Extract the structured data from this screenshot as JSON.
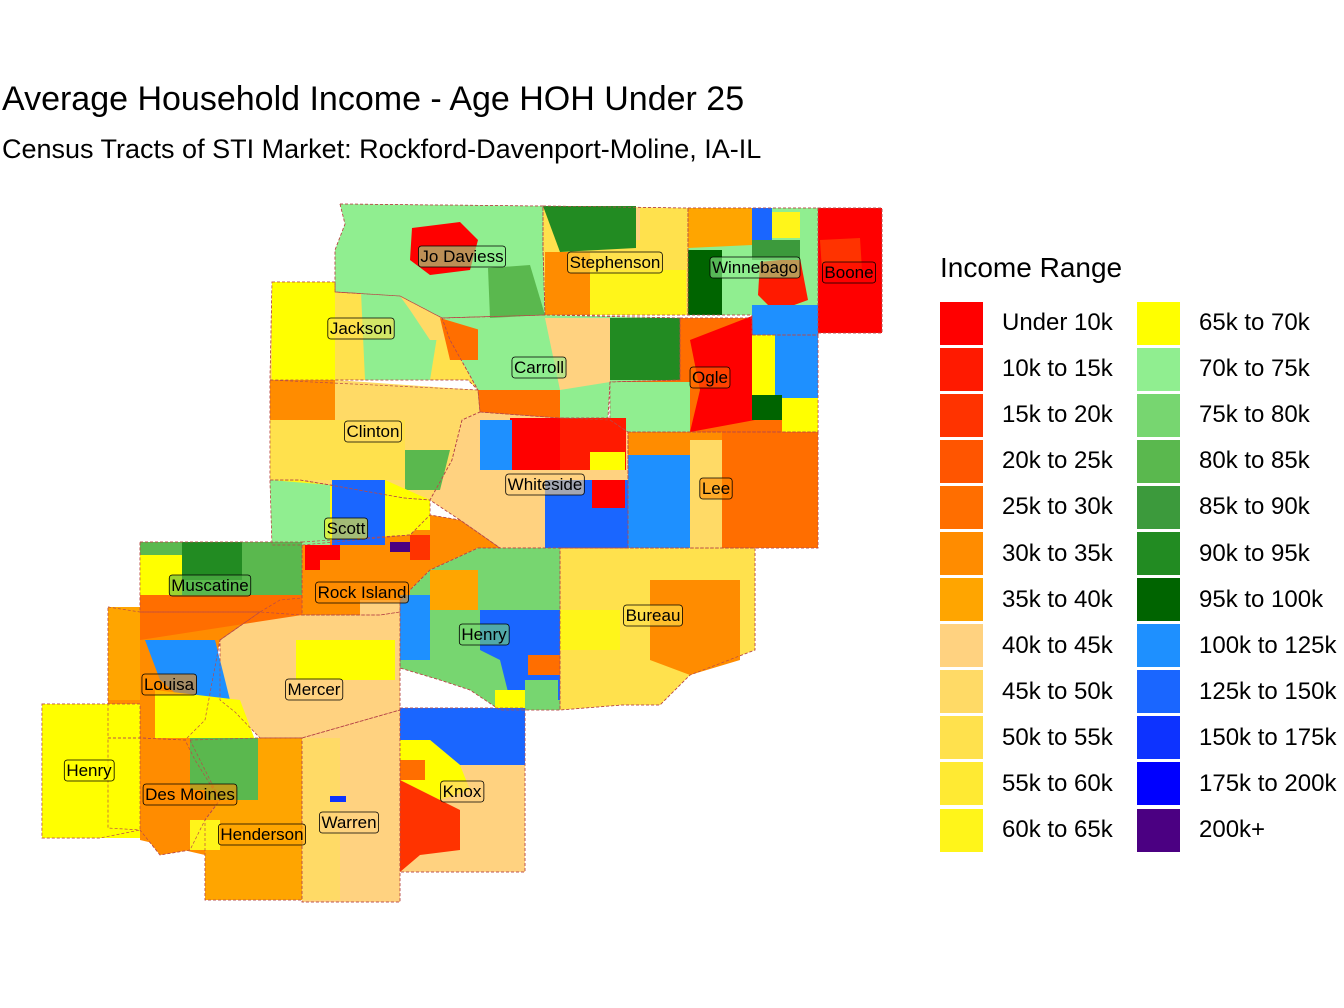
{
  "title": "Average Household Income - Age HOH Under 25",
  "subtitle": "Census Tracts of STI Market: Rockford-Davenport-Moline, IA-IL",
  "legend": {
    "title": "Income Range",
    "items": [
      {
        "label": "Under 10k",
        "color": "#FF0000"
      },
      {
        "label": "10k to 15k",
        "color": "#FF1A00"
      },
      {
        "label": "15k to 20k",
        "color": "#FF3300"
      },
      {
        "label": "20k to 25k",
        "color": "#FF5500"
      },
      {
        "label": "25k to 30k",
        "color": "#FF6E00"
      },
      {
        "label": "30k to 35k",
        "color": "#FF8C00"
      },
      {
        "label": "35k to 40k",
        "color": "#FFA500"
      },
      {
        "label": "40k to 45k",
        "color": "#FFD280"
      },
      {
        "label": "45k to 50k",
        "color": "#FFDA66"
      },
      {
        "label": "50k to 55k",
        "color": "#FFE14D"
      },
      {
        "label": "55k to 60k",
        "color": "#FFEA33"
      },
      {
        "label": "60k to 65k",
        "color": "#FFF51A"
      },
      {
        "label": "65k to 70k",
        "color": "#FFFF00"
      },
      {
        "label": "70k to 75k",
        "color": "#90EE90"
      },
      {
        "label": "75k to 80k",
        "color": "#77D670"
      },
      {
        "label": "80k to 85k",
        "color": "#5AB84E"
      },
      {
        "label": "85k to 90k",
        "color": "#3C9A3C"
      },
      {
        "label": "90k to 95k",
        "color": "#228B22"
      },
      {
        "label": "95k to 100k",
        "color": "#006400"
      },
      {
        "label": "100k to 125k",
        "color": "#1E90FF"
      },
      {
        "label": "125k to 150k",
        "color": "#1A66FF"
      },
      {
        "label": "150k to 175k",
        "color": "#0D33FF"
      },
      {
        "label": "175k to 200k",
        "color": "#0000FF"
      },
      {
        "label": "200k+",
        "color": "#4B0082"
      }
    ]
  },
  "counties": [
    {
      "name": "Jo Daviess",
      "color": "#90EE90"
    },
    {
      "name": "Stephenson",
      "color": "#FFE14D"
    },
    {
      "name": "Winnebago",
      "color": "#90EE90"
    },
    {
      "name": "Boone",
      "color": "#FF0000"
    },
    {
      "name": "Jackson",
      "color": "#FFE14D"
    },
    {
      "name": "Carroll",
      "color": "#90EE90"
    },
    {
      "name": "Ogle",
      "color": "#FF6E00"
    },
    {
      "name": "Clinton",
      "color": "#FFDA66"
    },
    {
      "name": "Whiteside",
      "color": "#FFD280"
    },
    {
      "name": "Lee",
      "color": "#FF8C00"
    },
    {
      "name": "Scott",
      "color": "#FFF51A"
    },
    {
      "name": "Muscatine",
      "color": "#5AB84E"
    },
    {
      "name": "Rock Island",
      "color": "#FF8C00"
    },
    {
      "name": "Bureau",
      "color": "#FFE14D"
    },
    {
      "name": "Henry",
      "color": "#77D670"
    },
    {
      "name": "Louisa",
      "color": "#FF8C00"
    },
    {
      "name": "Mercer",
      "color": "#FFD280"
    },
    {
      "name": "Henry",
      "color": "#FFFF00"
    },
    {
      "name": "Des Moines",
      "color": "#FF8C00"
    },
    {
      "name": "Henderson",
      "color": "#FFA500"
    },
    {
      "name": "Warren",
      "color": "#FFD280"
    },
    {
      "name": "Knox",
      "color": "#FFD280"
    }
  ]
}
